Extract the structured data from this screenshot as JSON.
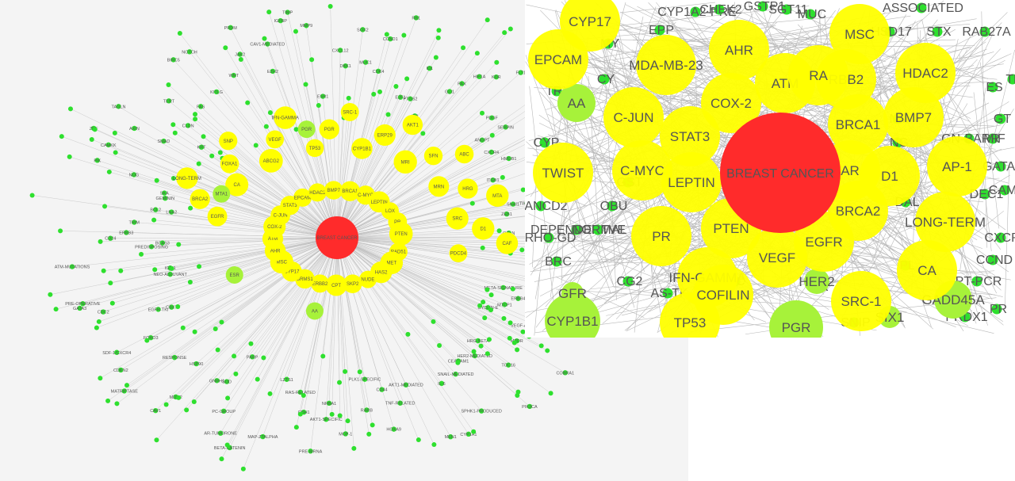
{
  "panels": {
    "left": {
      "center_label": "BREAST CANCER"
    },
    "right": {
      "center_label": "BREAST CANCER"
    }
  },
  "colors": {
    "hub": "#ff2b2b",
    "major": "#ffff00",
    "mid": "#a7f23a",
    "minor": "#2ee02e",
    "edge": "#b9b9b9"
  },
  "left_nodes": {
    "major": [
      "RAD51",
      "MET",
      "HAS2",
      "NUDE",
      "SKP2",
      "CPT",
      "ERBB2",
      "BRMS1",
      "CYP17",
      "MSC",
      "AHR",
      "ATM",
      "COX-2",
      "C-JUN",
      "STAT3",
      "EPCAM",
      "HDAC2",
      "BMP7",
      "BRCA1",
      "C-MYC",
      "LEPTIN",
      "LOX",
      "PR",
      "PTEN",
      "EGFR",
      "BRCA2",
      "LONG-TERM",
      "CA",
      "FOXA1",
      "SNP",
      "ABCG2",
      "VEGF",
      "IFN-GAMMA",
      "TP53",
      "PGR",
      "SRC-1",
      "CYP1B1",
      "ERP29",
      "AKT1",
      "MRI",
      "SFN",
      "ABC",
      "MRN",
      "HRG",
      "MTA",
      "SRC",
      "D1",
      "CAF",
      "PDCD4"
    ],
    "mid": [
      "AA",
      "ESR",
      "MTA1",
      "PGR"
    ],
    "minor": [
      "SMM",
      "SAB1",
      "PSEA",
      "G2P",
      "BRCA1-ASSOCIATED",
      "BREAST-CONSERVING",
      "META-SIGNATURE",
      "ERBB4",
      "MTCP1",
      "VEGF-A-INDEPENDENT",
      "CYCLIN-E",
      "COBRA1",
      "MTOR",
      "HRG-BETA",
      "TOC16",
      "HER2-MEDIATED",
      "PIK3CA",
      "CEACAM1",
      "SNAIL-MEDIATED",
      "SPHK1-PRODUCED",
      "IL-6",
      "CYP1A1",
      "MEN1",
      "AKT1-MEDIATED",
      "TNF-RELATED",
      "HOXA9",
      "CD44",
      "PLK1-SPECIFIC",
      "RARB",
      "MCP-1",
      "NRBA1",
      "AKT1-SPECIFIC",
      "PRE-MRNA",
      "CDH1",
      "RAS-RELATED",
      "LZTS1",
      "MAP-ZTALPHA",
      "BETA-CATENIN",
      "AR-TUMORONE",
      "PC-GROUP",
      "PARP",
      "SOD",
      "GNRH1",
      "MDM2",
      "CAV1",
      "HSP90",
      "RESPONSE",
      "MATRIPTASE",
      "CDKN2",
      "FOXO3",
      "SDF-1/CXCR4",
      "EGFR-TKI",
      "CBX7",
      "CDC2",
      "GATA3",
      "PRE-OPERATIVE",
      "NEO-ADJUVANT",
      "IGF-1",
      "ATM-MUTATIONS",
      "PREDISPOSING",
      "BCAS3",
      "CD24",
      "ERBB3",
      "TRIM",
      "BCL2",
      "LNA2",
      "GEMININ",
      "SKA",
      "NOG",
      "PIK",
      "CAMKK",
      "ZNF",
      "AXIN",
      "SMAD",
      "TAGLN",
      "KRT",
      "CLDN",
      "TERT",
      "FAS",
      "BIRC5",
      "KITLG",
      "NOTCH",
      "WNT",
      "JAK2",
      "PRDM",
      "EZH2",
      "CAV1-MEDIATED",
      "IGFBP",
      "TIMP",
      "MMP9",
      "ESR1",
      "CXCL12",
      "DKK1",
      "SOX2",
      "MUC1",
      "CCND1",
      "CDK4",
      "RB1",
      "E2F1",
      "PTGS2",
      "ID1",
      "ID2",
      "PAX",
      "GLI1",
      "HIF1A",
      "KDR",
      "FLT1",
      "PDGF",
      "ANGPT",
      "SERPIN",
      "CTSD",
      "CXCR4",
      "HMGB1",
      "CD36",
      "ITGB1",
      "FN1",
      "VIM",
      "SNAI1",
      "TWIST1",
      "ZEB1",
      "CDH2",
      "OCLN",
      "TJP1"
    ]
  },
  "right_nodes": {
    "major": [
      "CYP17",
      "EPCAM",
      "AHR",
      "MDA-MB-231",
      "ATM",
      "COX-2",
      "RBB2",
      "HDAC2",
      "C-JUN",
      "BRCA1",
      "BMP7",
      "STAT3",
      "CAR",
      "D1",
      "AP-1",
      "C-MYC",
      "LEPTIN",
      "TWIST",
      "BRCA2",
      "LONG-TERM",
      "PR",
      "PTEN",
      "EGFR",
      "VEGF",
      "IFN-GAMMA",
      "CA",
      "SRC-1",
      "TP53",
      "PGR",
      "RA",
      "MSC",
      "COFILIN"
    ],
    "mid": [
      "AA",
      "CYP1B1",
      "GADD45A",
      "HER2",
      "SIX1",
      "GFR",
      "PGR-GREEN"
    ],
    "minor_labels": [
      "CYP1A2-PRE",
      "EPP",
      "SGT11",
      "ASSOCIATED",
      "HSD17",
      "STX",
      "RAB27A",
      "GT",
      "MIF",
      "GATA3",
      "GN-BARR",
      "DEC1",
      "CAML",
      "CXCR",
      "CCND",
      "PT-PCR",
      "PR",
      "PRDX1",
      "MUC",
      "GSTP1",
      "CHEK2",
      "MY",
      "TRX",
      "CYP",
      "FANCD2",
      "RHO-GD",
      "BRC",
      "DEPENDENTVE",
      "NORMAL",
      "GST",
      "OBU",
      "CG2",
      "AS-TK",
      "FC",
      "ER",
      "SNIP",
      "PL",
      "NM",
      "ES",
      "TR",
      "DAL",
      "NG",
      "CY",
      "BRCA"
    ]
  },
  "right_labels": {
    "CYP17": "CYP17",
    "EPCAM": "EPCAM",
    "AHR": "AHR",
    "MDA-MB-231": "MDA-MB-23",
    "ATM": "ATM",
    "COX-2": "COX-2",
    "RBB2": "RBB2",
    "HDAC2": "HDAC2",
    "C-JUN": "C-JUN",
    "BRCA1": "BRCA1",
    "BMP7": "BMP7",
    "STAT3": "STAT3",
    "CAR": "AR",
    "D1": "D1",
    "AP-1": "AP-1",
    "C-MYC": "C-MYC",
    "LEPTIN": "LEPTIN",
    "TWIST": "TWIST",
    "BRCA2": "BRCA2",
    "LONG-TERM": "LONG-TERM",
    "PR": "PR",
    "PTEN": "PTEN",
    "EGFR": "EGFR",
    "VEGF": "VEGF",
    "IFN-GAMMA": "IFN-GAMMA",
    "CA": "CA",
    "SRC-1": "SRC-1",
    "TP53": "TP53",
    "PGR": "PGR",
    "RA": "RA",
    "MSC": "MSC",
    "COFILIN": "COFILIN",
    "AA": "AA",
    "CYP1B1": "CYP1B1",
    "GADD45A": "GADD45A",
    "HER2": "HER2",
    "SIX1": "SIX1",
    "GFR": "GFR"
  }
}
